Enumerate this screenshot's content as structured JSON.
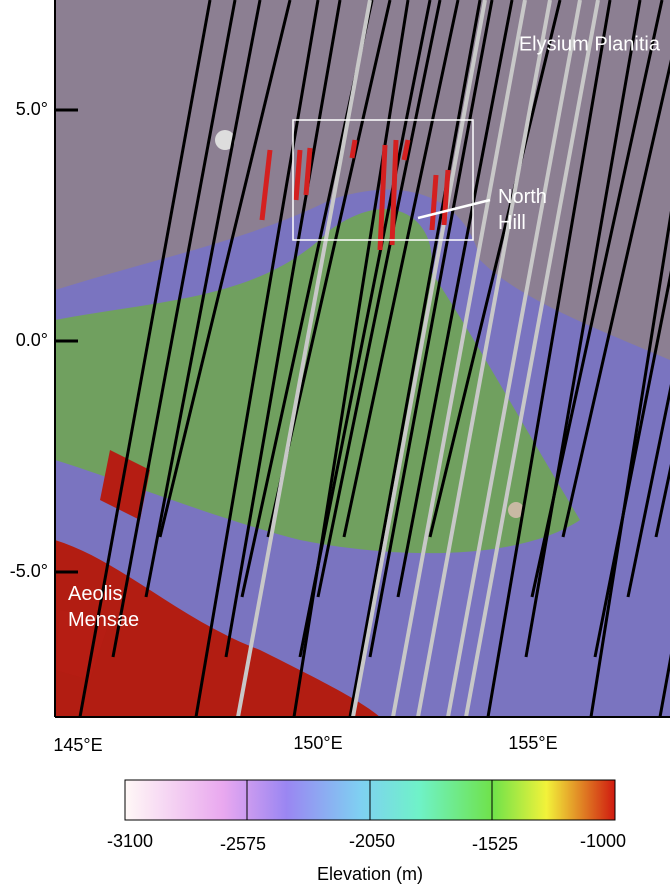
{
  "map": {
    "labels": [
      "Elysium Planitia",
      "North Hill",
      "Aeolis Mensae"
    ],
    "lat_ticks": [
      "5.0°",
      "0.0°",
      "-5.0°"
    ],
    "lon_ticks": [
      "145°E",
      "150°E",
      "155°E"
    ],
    "colorbar": {
      "ticks": [
        "-3100",
        "-2575",
        "-2050",
        "-1525",
        "-1000"
      ],
      "label": "Elevation (m)"
    }
  }
}
